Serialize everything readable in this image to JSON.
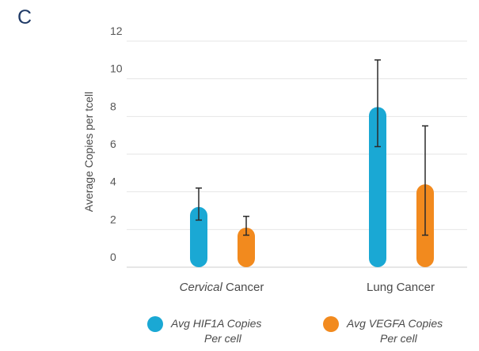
{
  "panel_label": "C",
  "chart_data": {
    "type": "bar",
    "ylabel": "Average Copies per tcell",
    "ylim": [
      0,
      12
    ],
    "yticks": [
      0,
      2,
      4,
      6,
      8,
      10,
      12
    ],
    "grid": true,
    "legend_position": "bottom",
    "categories": [
      {
        "pre": "",
        "italic": "Cervical",
        "post": " Cancer"
      },
      {
        "pre": "Lung Cancer",
        "italic": "",
        "post": ""
      }
    ],
    "series": [
      {
        "name_line1": "Avg HIF1A Copies",
        "name_line2": "Per cell",
        "color": "#1aa8d4",
        "values": [
          3.2,
          8.5
        ],
        "err_low": [
          2.5,
          6.4
        ],
        "err_high": [
          4.2,
          11.0
        ]
      },
      {
        "name_line1": "Avg VEGFA Copies",
        "name_line2": "Per cell",
        "color": "#f28a1e",
        "values": [
          2.1,
          4.4
        ],
        "err_low": [
          1.7,
          1.7
        ],
        "err_high": [
          2.7,
          7.5
        ]
      }
    ]
  }
}
